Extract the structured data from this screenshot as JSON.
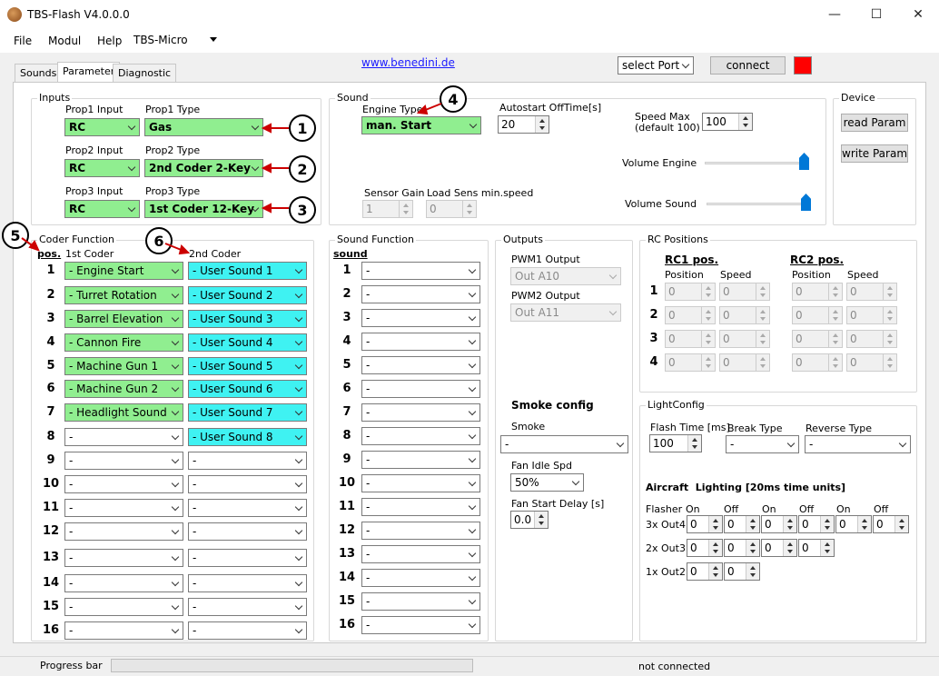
{
  "window": {
    "title": "TBS-Flash V4.0.0.0",
    "min": "—",
    "max": "☐",
    "close": "✕"
  },
  "menu": {
    "file": "File",
    "modul": "Modul",
    "help": "Help",
    "device": "TBS-Micro"
  },
  "tabs": [
    "Sounds",
    "Parameter",
    "Diagnostic"
  ],
  "link": "www.benedini.de",
  "port": {
    "value": "select Port",
    "connect": "connect",
    "status_color": "#ff0000"
  },
  "inputs": {
    "title": "Inputs",
    "props": [
      {
        "in_label": "Prop1 Input",
        "in_value": "RC",
        "type_label": "Prop1 Type",
        "type_value": "Gas",
        "marker": "1"
      },
      {
        "in_label": "Prop2 Input",
        "in_value": "RC",
        "type_label": "Prop2 Type",
        "type_value": "2nd Coder 2-Key",
        "marker": "2"
      },
      {
        "in_label": "Prop3 Input",
        "in_value": "RC",
        "type_label": "Prop3 Type",
        "type_value": "1st Coder 12-Key",
        "marker": "3"
      }
    ]
  },
  "sound": {
    "title": "Sound",
    "engine_type_label": "Engine Type",
    "engine_type_value": "man. Start",
    "marker": "4",
    "autostart_label": "Autostart OffTime[s]",
    "autostart_value": "20",
    "speed_max_label1": "Speed Max",
    "speed_max_label2": "(default 100)",
    "speed_max_value": "100",
    "volume_engine_label": "Volume Engine",
    "volume_sound_label": "Volume Sound",
    "sensor_gain_label": "Sensor Gain",
    "sensor_gain_value": "1",
    "load_sens_label": "Load Sens min.speed",
    "load_sens_value": "0"
  },
  "device": {
    "title": "Device",
    "read": "read Param",
    "write": "write Param"
  },
  "coder": {
    "title": "Coder Function",
    "pos_label": "pos.",
    "first_label": "1st Coder",
    "second_label": "2nd Coder",
    "marker5": "5",
    "marker6": "6",
    "rows": [
      {
        "pos": "1",
        "first": "- Engine Start",
        "second": "- User Sound 1"
      },
      {
        "pos": "2",
        "first": "- Turret Rotation",
        "second": "- User Sound 2"
      },
      {
        "pos": "3",
        "first": "- Barrel Elevation",
        "second": "- User Sound 3"
      },
      {
        "pos": "4",
        "first": "- Cannon Fire",
        "second": "- User Sound 4"
      },
      {
        "pos": "5",
        "first": "- Machine Gun 1",
        "second": "- User Sound 5"
      },
      {
        "pos": "6",
        "first": "- Machine Gun 2",
        "second": "- User Sound 6"
      },
      {
        "pos": "7",
        "first": "- Headlight Sound",
        "second": "- User Sound 7"
      },
      {
        "pos": "8",
        "first": "-",
        "second": "- User Sound 8"
      },
      {
        "pos": "9",
        "first": "-",
        "second": "-"
      },
      {
        "pos": "10",
        "first": "-",
        "second": "-"
      },
      {
        "pos": "11",
        "first": "-",
        "second": "-"
      },
      {
        "pos": "12",
        "first": "-",
        "second": "-"
      },
      {
        "pos": "13",
        "first": "-",
        "second": "-"
      },
      {
        "pos": "14",
        "first": "-",
        "second": "-"
      },
      {
        "pos": "15",
        "first": "-",
        "second": "-"
      },
      {
        "pos": "16",
        "first": "-",
        "second": "-"
      }
    ]
  },
  "soundfn": {
    "title": "Sound Function",
    "col_label": "sound",
    "rows": [
      {
        "pos": "1",
        "value": "-"
      },
      {
        "pos": "2",
        "value": "-"
      },
      {
        "pos": "3",
        "value": "-"
      },
      {
        "pos": "4",
        "value": "-"
      },
      {
        "pos": "5",
        "value": "-"
      },
      {
        "pos": "6",
        "value": "-"
      },
      {
        "pos": "7",
        "value": "-"
      },
      {
        "pos": "8",
        "value": "-"
      },
      {
        "pos": "9",
        "value": "-"
      },
      {
        "pos": "10",
        "value": "-"
      },
      {
        "pos": "11",
        "value": "-"
      },
      {
        "pos": "12",
        "value": "-"
      },
      {
        "pos": "13",
        "value": "-"
      },
      {
        "pos": "14",
        "value": "-"
      },
      {
        "pos": "15",
        "value": "-"
      },
      {
        "pos": "16",
        "value": "-"
      }
    ]
  },
  "outputs": {
    "title": "Outputs",
    "pwm1_label": "PWM1 Output",
    "pwm1_value": "Out A10",
    "pwm2_label": "PWM2 Output",
    "pwm2_value": "Out A11",
    "smoke_title": "Smoke config",
    "smoke_label": "Smoke",
    "smoke_value": "-",
    "fan_idle_label": "Fan Idle Spd",
    "fan_idle_value": "50%",
    "fan_start_label": "Fan Start Delay [s]",
    "fan_start_value": "0.0"
  },
  "rc": {
    "title": "RC Positions",
    "rc1": "RC1 pos.",
    "rc2": "RC2 pos.",
    "position": "Position",
    "speed": "Speed",
    "rows": [
      {
        "n": "1",
        "v": [
          "0",
          "0",
          "0",
          "0"
        ]
      },
      {
        "n": "2",
        "v": [
          "0",
          "0",
          "0",
          "0"
        ]
      },
      {
        "n": "3",
        "v": [
          "0",
          "0",
          "0",
          "0"
        ]
      },
      {
        "n": "4",
        "v": [
          "0",
          "0",
          "0",
          "0"
        ]
      }
    ]
  },
  "light": {
    "title": "LightConfig",
    "flash_label": "Flash Time [ms]",
    "flash_value": "100",
    "break_label": "Break Type",
    "break_value": "-",
    "reverse_label": "Reverse Type",
    "reverse_value": "-",
    "aircraft_title": "Aircraft  Lighting [20ms time units]",
    "flasher": "Flasher",
    "on": "On",
    "off": "Off",
    "rows": [
      {
        "label": "3x Out4",
        "v": [
          "0",
          "0",
          "0",
          "0",
          "0",
          "0"
        ]
      },
      {
        "label": "2x Out3",
        "v": [
          "0",
          "0",
          "0",
          "0"
        ]
      },
      {
        "label": "1x Out2",
        "v": [
          "0",
          "0"
        ]
      }
    ]
  },
  "status": {
    "progress": "Progress bar",
    "connection": "not connected"
  }
}
